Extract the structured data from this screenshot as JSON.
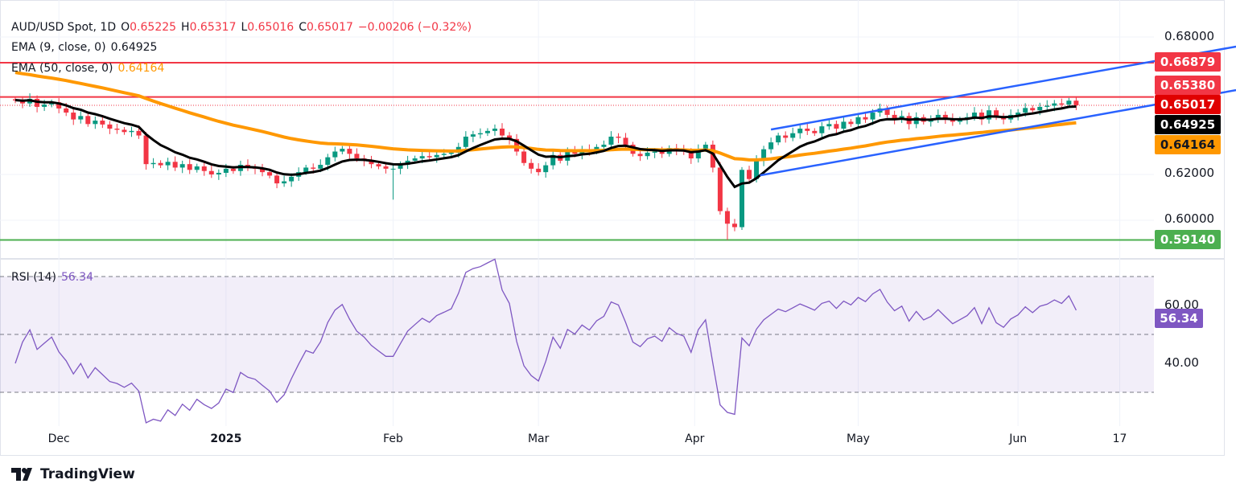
{
  "header": {
    "symbol": "AUD/USD Spot, 1D",
    "o_label": "O",
    "open": "0.65225",
    "h_label": "H",
    "high": "0.65317",
    "l_label": "L",
    "low": "0.65016",
    "c_label": "C",
    "close": "0.65017",
    "change": "−0.00206 (−0.32%)",
    "ema9_label": "EMA (9, close, 0)",
    "ema9_value": "0.64925",
    "ema50_label": "EMA (50, close, 0)",
    "ema50_value": "0.64164",
    "rsi_label": "RSI (14)",
    "rsi_value": "56.34"
  },
  "price_axis": [
    "0.68000",
    "0.62000",
    "0.60000"
  ],
  "price_tags": {
    "r1": "0.66879",
    "r2": "0.65380",
    "last": "0.65017",
    "ema9": "0.64925",
    "ema50": "0.64164",
    "s1": "0.59140"
  },
  "rsi_axis": [
    "60.00",
    "40.00"
  ],
  "rsi_tag": "56.34",
  "x_labels": [
    "Dec",
    "2025",
    "Feb",
    "Mar",
    "Apr",
    "May",
    "Jun",
    "17"
  ],
  "logo": "TradingView",
  "colors": {
    "up": "#089981",
    "down": "#f23645",
    "ema9": "#000000",
    "ema50": "#ff9800",
    "channel": "#2962ff",
    "resistance": "#f23645",
    "support": "#4caf50",
    "rsi": "#7e57c2"
  },
  "chart_data": {
    "type": "candlestick",
    "title": "AUD/USD Spot, 1D",
    "ylim": [
      0.585,
      0.6866
    ],
    "yticks": [
      0.68,
      0.62,
      0.6
    ],
    "x_tick_bars": [
      6,
      29,
      52,
      72,
      93.5,
      116,
      138,
      152
    ],
    "close": [
      0.6523,
      0.651,
      0.653,
      0.6495,
      0.6505,
      0.6515,
      0.6488,
      0.647,
      0.644,
      0.6455,
      0.642,
      0.6435,
      0.6418,
      0.64,
      0.6395,
      0.6385,
      0.639,
      0.637,
      0.6245,
      0.625,
      0.624,
      0.6255,
      0.623,
      0.6245,
      0.622,
      0.6235,
      0.6215,
      0.62,
      0.6207,
      0.6225,
      0.6215,
      0.6242,
      0.623,
      0.6225,
      0.621,
      0.6195,
      0.6161,
      0.617,
      0.619,
      0.621,
      0.623,
      0.6225,
      0.6242,
      0.6275,
      0.63,
      0.6312,
      0.629,
      0.627,
      0.626,
      0.6245,
      0.6235,
      0.6225,
      0.6225,
      0.6242,
      0.626,
      0.627,
      0.628,
      0.6275,
      0.6285,
      0.629,
      0.6295,
      0.632,
      0.6365,
      0.6375,
      0.638,
      0.639,
      0.64,
      0.637,
      0.6355,
      0.63,
      0.625,
      0.6225,
      0.621,
      0.624,
      0.6285,
      0.626,
      0.63,
      0.629,
      0.631,
      0.63,
      0.632,
      0.633,
      0.6365,
      0.636,
      0.633,
      0.629,
      0.628,
      0.6295,
      0.63,
      0.629,
      0.6315,
      0.6305,
      0.63,
      0.627,
      0.631,
      0.633,
      0.623,
      0.604,
      0.5985,
      0.597,
      0.622,
      0.618,
      0.626,
      0.631,
      0.634,
      0.637,
      0.636,
      0.638,
      0.64,
      0.639,
      0.638,
      0.641,
      0.642,
      0.64,
      0.643,
      0.642,
      0.645,
      0.644,
      0.647,
      0.6488,
      0.646,
      0.644,
      0.6455,
      0.642,
      0.645,
      0.643,
      0.644,
      0.646,
      0.6445,
      0.643,
      0.644,
      0.645,
      0.647,
      0.644,
      0.648,
      0.645,
      0.644,
      0.646,
      0.647,
      0.649,
      0.648,
      0.6495,
      0.65,
      0.651,
      0.6505,
      0.6522,
      0.6502
    ],
    "low_extremes": {
      "52": 0.609,
      "98": 0.5914
    },
    "ema9_seed": 0.6525,
    "ema50_seed": 0.665,
    "hlines": [
      0.66879,
      0.6538,
      0.5914
    ],
    "last_price_line": 0.65017,
    "channel": {
      "upper": [
        [
          104,
          0.6396
        ],
        [
          168,
          0.6758
        ]
      ],
      "lower": [
        [
          102.5,
          0.6196
        ],
        [
          168,
          0.6568
        ]
      ]
    },
    "rsi": {
      "period": 14,
      "levels": [
        70,
        50,
        30
      ],
      "ylim_ticks": [
        60,
        40
      ],
      "last": 56.34
    }
  }
}
